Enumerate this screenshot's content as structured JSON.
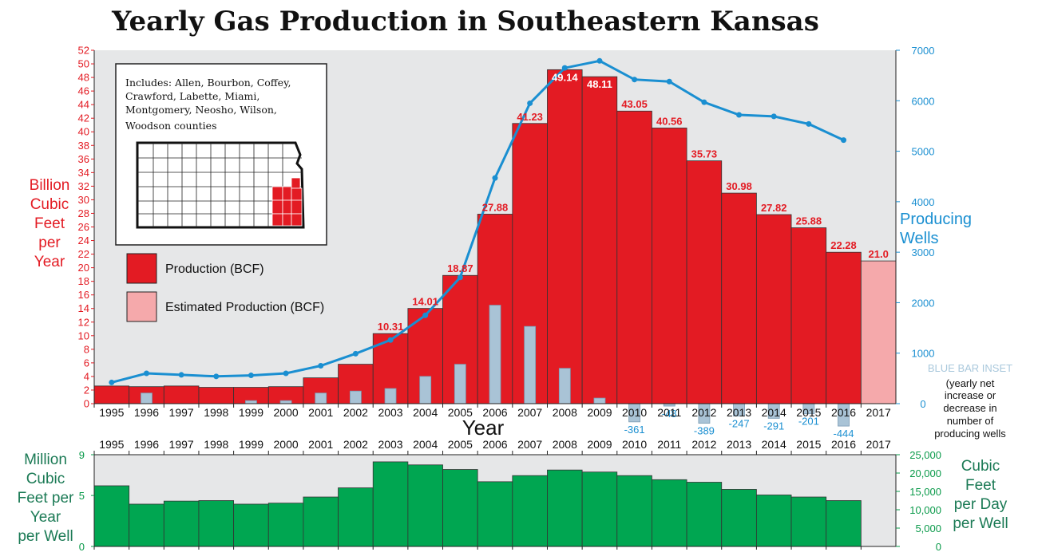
{
  "colors": {
    "production": "#e31b23",
    "estimated": "#f5a9ab",
    "wells": "#1a8fd1",
    "inset": "#a9c3d6",
    "per_well": "#00a651",
    "plot_bg": "#e6e7e8"
  },
  "chart_data": [
    {
      "type": "bar",
      "title": "Yearly Gas Production in Southeastern Kansas",
      "xlabel": "Year",
      "ylabel": [
        "Billion",
        "Cubic",
        "Feet",
        "per",
        "Year"
      ],
      "y2label": [
        "Producing",
        "Wells"
      ],
      "ylim": [
        0,
        52
      ],
      "y2lim": [
        0,
        7000
      ],
      "yticks": [
        "0",
        "2",
        "4",
        "6",
        "8",
        "10",
        "12",
        "14",
        "16",
        "18",
        "20",
        "22",
        "24",
        "26",
        "28",
        "30",
        "32",
        "34",
        "36",
        "38",
        "40",
        "42",
        "44",
        "46",
        "48",
        "50",
        "52"
      ],
      "y2ticks": [
        "0",
        "1000",
        "2000",
        "3000",
        "4000",
        "5000",
        "6000",
        "7000"
      ],
      "categories": [
        "1995",
        "1996",
        "1997",
        "1998",
        "1999",
        "2000",
        "2001",
        "2002",
        "2003",
        "2004",
        "2005",
        "2006",
        "2007",
        "2008",
        "2009",
        "2010",
        "2011",
        "2012",
        "2013",
        "2014",
        "2015",
        "2016",
        "2017"
      ],
      "series": [
        {
          "name": "Production (BCF)",
          "values": [
            2.6,
            2.5,
            2.6,
            2.4,
            2.4,
            2.5,
            3.8,
            5.8,
            10.31,
            14.01,
            18.87,
            27.88,
            41.23,
            49.14,
            48.11,
            43.05,
            40.56,
            35.73,
            30.98,
            27.82,
            25.88,
            22.28,
            null
          ],
          "labels": [
            "",
            "",
            "",
            "",
            "",
            "",
            "",
            "",
            "10.31",
            "14.01",
            "18.87",
            "27.88",
            "41.23",
            "49.14",
            "48.11",
            "43.05",
            "40.56",
            "35.73",
            "30.98",
            "27.82",
            "25.88",
            "22.28",
            ""
          ]
        },
        {
          "name": "Estimated Production (BCF)",
          "values": [
            null,
            null,
            null,
            null,
            null,
            null,
            null,
            null,
            null,
            null,
            null,
            null,
            null,
            null,
            null,
            null,
            null,
            null,
            null,
            null,
            null,
            null,
            21.0
          ],
          "labels": [
            "",
            "",
            "",
            "",
            "",
            "",
            "",
            "",
            "",
            "",
            "",
            "",
            "",
            "",
            "",
            "",
            "",
            "",
            "",
            "",
            "",
            "",
            "21.0"
          ]
        },
        {
          "type": "line",
          "axis": "y2",
          "values": [
            420,
            600,
            570,
            540,
            560,
            600,
            750,
            990,
            1260,
            1750,
            2500,
            4470,
            5950,
            6650,
            6790,
            6420,
            6380,
            5970,
            5720,
            5690,
            5540,
            5220,
            null
          ]
        }
      ],
      "inset": {
        "title": "BLUE BAR INSET",
        "note": [
          "(yearly net",
          "increase or",
          "decrease in",
          "number of",
          "producing wells"
        ],
        "values": [
          null,
          210,
          null,
          null,
          60,
          60,
          210,
          250,
          300,
          540,
          780,
          1950,
          1530,
          700,
          110,
          -361,
          -48,
          -389,
          -247,
          -291,
          -201,
          -444,
          null
        ],
        "labels": [
          "",
          "",
          "",
          "",
          "",
          "",
          "",
          "",
          "",
          "",
          "",
          "",
          "",
          "",
          "",
          "-361",
          "-48",
          "-389",
          "-247",
          "-291",
          "-201",
          "-444",
          ""
        ]
      },
      "legend": {
        "placement": "left",
        "items": [
          {
            "label": "Production (BCF)",
            "color": "#e31b23"
          },
          {
            "label": "Estimated Production (BCF)",
            "color": "#f5a9ab"
          }
        ]
      },
      "map_note": [
        "Includes:  Allen, Bourbon, Coffey,",
        "Crawford, Labette, Miami,",
        "Montgomery, Neosho, Wilson,",
        "Woodson counties"
      ]
    },
    {
      "type": "bar",
      "ylabel": [
        "Million",
        "Cubic",
        "Feet per",
        "Year",
        "per Well"
      ],
      "y2label": [
        "Cubic",
        "Feet",
        "per Day",
        "per Well"
      ],
      "ylim": [
        0,
        9
      ],
      "y2lim": [
        0,
        25000
      ],
      "yticks": [
        "0",
        "5",
        "9"
      ],
      "y2ticks": [
        "0",
        "5,000",
        "10,000",
        "15,000",
        "20,000",
        "25,000"
      ],
      "categories": [
        "1995",
        "1996",
        "1997",
        "1998",
        "1999",
        "2000",
        "2001",
        "2002",
        "2003",
        "2004",
        "2005",
        "2006",
        "2007",
        "2008",
        "2009",
        "2010",
        "2011",
        "2012",
        "2013",
        "2014",
        "2015",
        "2016",
        "2017"
      ],
      "values": [
        5.95,
        4.15,
        4.45,
        4.5,
        4.15,
        4.25,
        4.85,
        5.75,
        8.3,
        8.0,
        7.55,
        6.35,
        6.95,
        7.5,
        7.3,
        6.95,
        6.55,
        6.3,
        5.6,
        5.05,
        4.85,
        4.5,
        null
      ]
    }
  ]
}
